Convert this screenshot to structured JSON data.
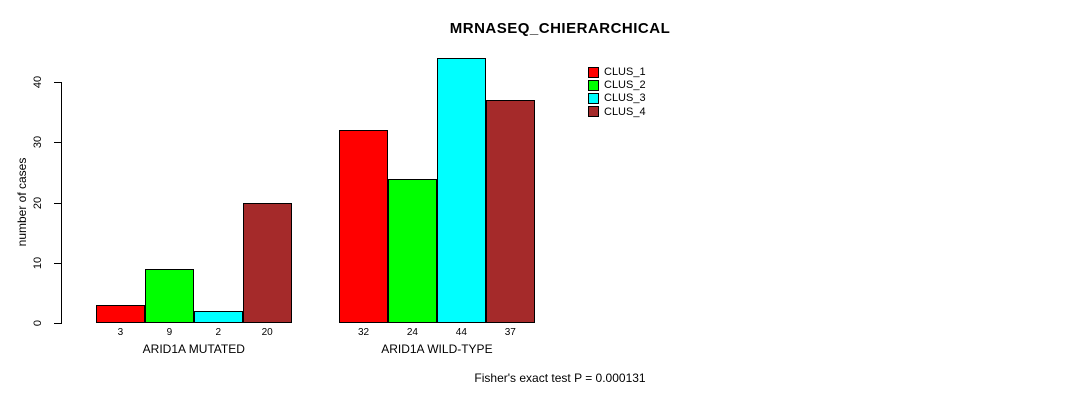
{
  "chart_data": {
    "type": "bar",
    "title": "MRNASEQ_CHIERARCHICAL",
    "ylabel": "number of cases",
    "xlabel": "",
    "ylim": [
      0,
      40
    ],
    "yticks": [
      0,
      10,
      20,
      30,
      40
    ],
    "grid": false,
    "legend_position": "top-right",
    "categories": [
      "ARID1A MUTATED",
      "ARID1A WILD-TYPE"
    ],
    "series": [
      {
        "name": "CLUS_1",
        "color": "#FF0000",
        "values": [
          3,
          32
        ]
      },
      {
        "name": "CLUS_2",
        "color": "#00FF00",
        "values": [
          9,
          24
        ]
      },
      {
        "name": "CLUS_3",
        "color": "#00FFFF",
        "values": [
          2,
          44
        ]
      },
      {
        "name": "CLUS_4",
        "color": "#A52A2A",
        "values": [
          20,
          37
        ]
      }
    ],
    "bar_value_labels": [
      [
        3,
        9,
        2,
        20
      ],
      [
        32,
        24,
        44,
        37
      ]
    ],
    "annotation": "Fisher's exact test P = 0.000131"
  },
  "colors": {
    "axis": "#000000",
    "bar_outline": "#000000",
    "background": "#FFFFFF"
  }
}
